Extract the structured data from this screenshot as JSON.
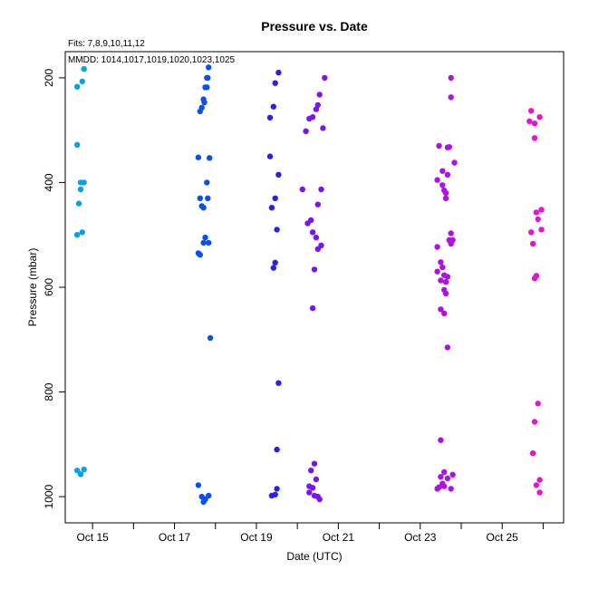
{
  "chart_data": {
    "type": "scatter",
    "title": "Pressure  vs. Date",
    "xlabel": "Date (UTC)",
    "ylabel": "Pressure (mbar)",
    "annotation_fits": "Fits: 7,8,9,10,11,12",
    "annotation_mmdd": "MMDD: 1014,1017,1019,1020,1023,1025",
    "x_axis_type": "date",
    "x_range": [
      "2023-10-14T08:00",
      "2023-10-26T12:00"
    ],
    "x_tick_dates": [
      "2023-10-15",
      "2023-10-16",
      "2023-10-17",
      "2023-10-18",
      "2023-10-19",
      "2023-10-20",
      "2023-10-21",
      "2023-10-22",
      "2023-10-23",
      "2023-10-24",
      "2023-10-25",
      "2023-10-26"
    ],
    "x_tick_labels": [
      "Oct 15",
      "",
      "Oct 17",
      "",
      "Oct 19",
      "",
      "Oct 21",
      "",
      "Oct 23",
      "",
      "Oct 25",
      ""
    ],
    "y_inverted": true,
    "ylim": [
      1050,
      150
    ],
    "y_ticks": [
      200,
      400,
      600,
      800,
      1000
    ],
    "y_tick_labels": [
      "200",
      "400",
      "600",
      "800",
      "1000"
    ],
    "grid": false,
    "marker": "filled-circle",
    "series": [
      {
        "color": "#0aa0e6",
        "points": [
          [
            "2023-10-14T19:00",
            183
          ],
          [
            "2023-10-14T18:00",
            207
          ],
          [
            "2023-10-14T15:00",
            217
          ],
          [
            "2023-10-14T15:00",
            328
          ],
          [
            "2023-10-14T17:00",
            400
          ],
          [
            "2023-10-14T19:00",
            400
          ],
          [
            "2023-10-14T17:00",
            413
          ],
          [
            "2023-10-14T16:00",
            440
          ],
          [
            "2023-10-14T18:00",
            495
          ],
          [
            "2023-10-14T15:00",
            500
          ],
          [
            "2023-10-14T15:00",
            950
          ],
          [
            "2023-10-14T19:00",
            948
          ],
          [
            "2023-10-14T17:00",
            957
          ]
        ]
      },
      {
        "color": "#0a50f0",
        "points": [
          [
            "2023-10-17T20:00",
            180
          ],
          [
            "2023-10-17T19:00",
            200
          ],
          [
            "2023-10-17T19:30",
            200
          ],
          [
            "2023-10-17T18:00",
            218
          ],
          [
            "2023-10-17T19:00",
            218
          ],
          [
            "2023-10-17T17:00",
            241
          ],
          [
            "2023-10-17T17:30",
            247
          ],
          [
            "2023-10-17T16:00",
            257
          ],
          [
            "2023-10-17T15:00",
            264
          ],
          [
            "2023-10-17T14:00",
            352
          ],
          [
            "2023-10-17T20:30",
            353
          ],
          [
            "2023-10-17T19:00",
            400
          ],
          [
            "2023-10-17T15:00",
            430
          ],
          [
            "2023-10-17T19:30",
            430
          ],
          [
            "2023-10-17T16:00",
            445
          ],
          [
            "2023-10-17T17:00",
            448
          ],
          [
            "2023-10-17T18:00",
            505
          ],
          [
            "2023-10-17T17:00",
            515
          ],
          [
            "2023-10-17T20:00",
            515
          ],
          [
            "2023-10-17T15:00",
            538
          ],
          [
            "2023-10-17T14:00",
            535
          ],
          [
            "2023-10-17T21:00",
            697
          ],
          [
            "2023-10-17T14:00",
            978
          ],
          [
            "2023-10-17T16:00",
            1000
          ],
          [
            "2023-10-17T20:00",
            998
          ],
          [
            "2023-10-17T18:00",
            1005
          ],
          [
            "2023-10-17T17:00",
            1010
          ]
        ]
      },
      {
        "color": "#2a1ff0",
        "points": [
          [
            "2023-10-19T13:00",
            190
          ],
          [
            "2023-10-19T11:00",
            210
          ],
          [
            "2023-10-19T10:00",
            255
          ],
          [
            "2023-10-19T08:00",
            276
          ],
          [
            "2023-10-19T08:00",
            350
          ],
          [
            "2023-10-19T13:00",
            385
          ],
          [
            "2023-10-19T11:00",
            430
          ],
          [
            "2023-10-19T09:00",
            448
          ],
          [
            "2023-10-19T12:00",
            490
          ],
          [
            "2023-10-19T11:00",
            553
          ],
          [
            "2023-10-19T10:00",
            563
          ],
          [
            "2023-10-19T13:00",
            783
          ],
          [
            "2023-10-19T12:00",
            910
          ],
          [
            "2023-10-19T12:00",
            985
          ],
          [
            "2023-10-19T09:00",
            998
          ],
          [
            "2023-10-19T11:00",
            996
          ]
        ]
      },
      {
        "color": "#7a14f0",
        "points": [
          [
            "2023-10-20T16:00",
            200
          ],
          [
            "2023-10-20T13:00",
            232
          ],
          [
            "2023-10-20T12:00",
            252
          ],
          [
            "2023-10-20T11:00",
            260
          ],
          [
            "2023-10-20T09:00",
            275
          ],
          [
            "2023-10-20T07:00",
            278
          ],
          [
            "2023-10-20T15:00",
            296
          ],
          [
            "2023-10-20T05:00",
            302
          ],
          [
            "2023-10-20T03:00",
            413
          ],
          [
            "2023-10-20T14:00",
            413
          ],
          [
            "2023-10-20T12:00",
            442
          ],
          [
            "2023-10-20T08:00",
            472
          ],
          [
            "2023-10-20T06:00",
            478
          ],
          [
            "2023-10-20T09:00",
            495
          ],
          [
            "2023-10-20T11:00",
            505
          ],
          [
            "2023-10-20T14:00",
            520
          ],
          [
            "2023-10-20T12:00",
            527
          ],
          [
            "2023-10-20T10:00",
            566
          ],
          [
            "2023-10-20T09:00",
            640
          ],
          [
            "2023-10-20T10:00",
            937
          ],
          [
            "2023-10-20T08:00",
            950
          ],
          [
            "2023-10-20T11:00",
            967
          ],
          [
            "2023-10-20T07:00",
            980
          ],
          [
            "2023-10-20T09:00",
            983
          ],
          [
            "2023-10-20T07:00",
            992
          ],
          [
            "2023-10-20T10:00",
            998
          ],
          [
            "2023-10-20T12:00",
            1000
          ],
          [
            "2023-10-20T13:00",
            1005
          ]
        ]
      },
      {
        "color": "#b010e6",
        "points": [
          [
            "2023-10-23T18:00",
            200
          ],
          [
            "2023-10-23T18:00",
            237
          ],
          [
            "2023-10-23T11:00",
            330
          ],
          [
            "2023-10-23T16:00",
            333
          ],
          [
            "2023-10-23T17:00",
            332
          ],
          [
            "2023-10-23T20:00",
            362
          ],
          [
            "2023-10-23T13:00",
            378
          ],
          [
            "2023-10-23T16:00",
            385
          ],
          [
            "2023-10-23T10:00",
            395
          ],
          [
            "2023-10-23T13:00",
            405
          ],
          [
            "2023-10-23T14:00",
            415
          ],
          [
            "2023-10-23T15:00",
            420
          ],
          [
            "2023-10-23T15:00",
            430
          ],
          [
            "2023-10-23T18:00",
            497
          ],
          [
            "2023-10-23T17:00",
            510
          ],
          [
            "2023-10-23T19:00",
            510
          ],
          [
            "2023-10-23T18:00",
            517
          ],
          [
            "2023-10-23T10:00",
            523
          ],
          [
            "2023-10-23T12:00",
            552
          ],
          [
            "2023-10-23T13:00",
            562
          ],
          [
            "2023-10-23T10:00",
            570
          ],
          [
            "2023-10-23T14:00",
            577
          ],
          [
            "2023-10-23T16:00",
            580
          ],
          [
            "2023-10-23T12:00",
            587
          ],
          [
            "2023-10-23T15:00",
            590
          ],
          [
            "2023-10-23T14:00",
            605
          ],
          [
            "2023-10-23T15:00",
            612
          ],
          [
            "2023-10-23T12:00",
            642
          ],
          [
            "2023-10-23T14:00",
            650
          ],
          [
            "2023-10-23T16:00",
            715
          ],
          [
            "2023-10-23T12:00",
            892
          ],
          [
            "2023-10-23T14:00",
            953
          ],
          [
            "2023-10-23T12:00",
            962
          ],
          [
            "2023-10-23T16:00",
            965
          ],
          [
            "2023-10-23T19:00",
            958
          ],
          [
            "2023-10-23T13:00",
            975
          ],
          [
            "2023-10-23T11:00",
            982
          ],
          [
            "2023-10-23T14:00",
            980
          ],
          [
            "2023-10-23T18:00",
            985
          ],
          [
            "2023-10-23T10:00",
            985
          ]
        ]
      },
      {
        "color": "#e614d2",
        "points": [
          [
            "2023-10-25T17:00",
            263
          ],
          [
            "2023-10-25T22:00",
            275
          ],
          [
            "2023-10-25T16:00",
            283
          ],
          [
            "2023-10-25T19:00",
            287
          ],
          [
            "2023-10-25T19:00",
            315
          ],
          [
            "2023-10-25T23:00",
            452
          ],
          [
            "2023-10-25T20:00",
            457
          ],
          [
            "2023-10-25T21:00",
            470
          ],
          [
            "2023-10-25T23:00",
            490
          ],
          [
            "2023-10-25T17:00",
            495
          ],
          [
            "2023-10-25T18:00",
            517
          ],
          [
            "2023-10-25T20:00",
            578
          ],
          [
            "2023-10-25T19:00",
            583
          ],
          [
            "2023-10-25T21:00",
            822
          ],
          [
            "2023-10-25T19:00",
            857
          ],
          [
            "2023-10-25T18:00",
            917
          ],
          [
            "2023-10-25T22:00",
            968
          ],
          [
            "2023-10-25T20:00",
            978
          ],
          [
            "2023-10-25T22:00",
            992
          ]
        ]
      }
    ]
  }
}
